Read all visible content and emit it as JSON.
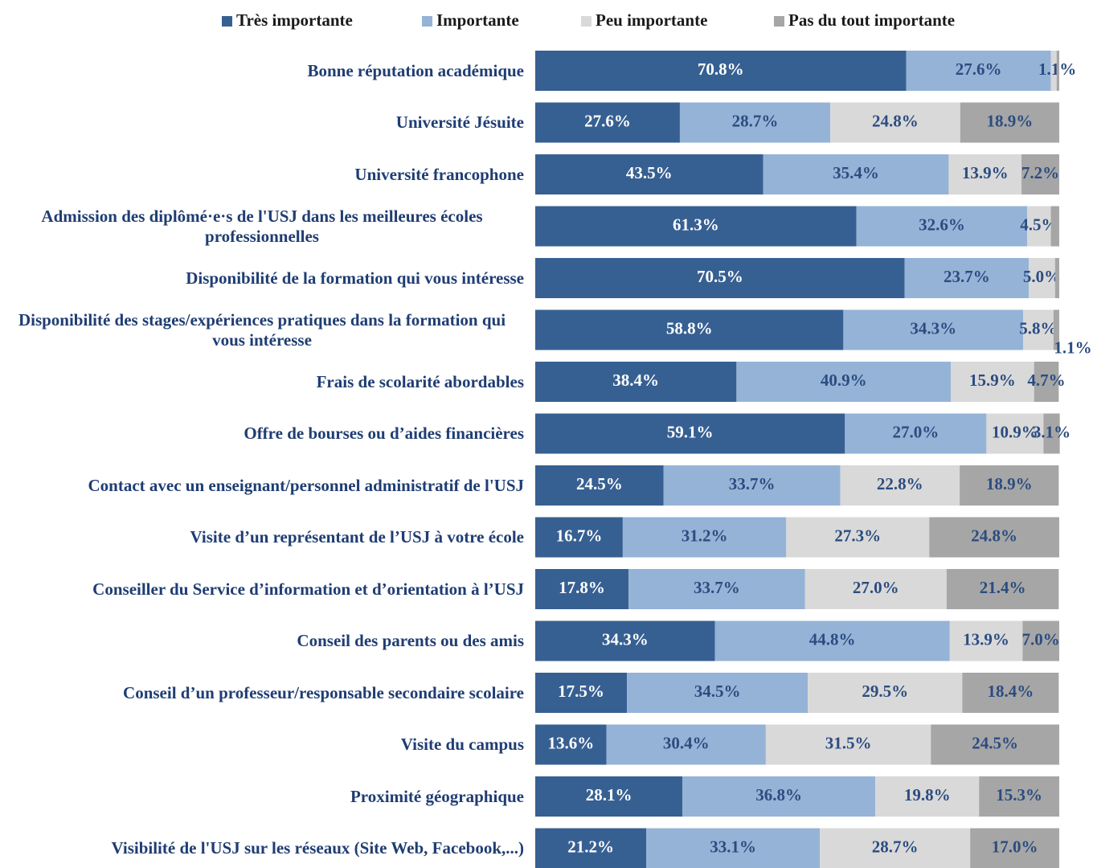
{
  "chart_data": {
    "type": "stacked-barh",
    "categories": [
      "Bonne réputation académique",
      "Université Jésuite",
      "Université francophone",
      "Admission des diplômé·e·s de l'USJ dans les meilleures écoles professionnelles",
      "Disponibilité de la formation qui vous intéresse",
      "Disponibilité des stages/expériences pratiques dans la formation qui vous intéresse",
      "Frais de scolarité abordables",
      "Offre de bourses ou d’aides financières",
      "Contact avec un enseignant/personnel administratif de l'USJ",
      "Visite d’un représentant de l’USJ à votre école",
      "Conseiller du Service d’information et d’orientation à l’USJ",
      "Conseil des parents ou des amis",
      "Conseil d’un professeur/responsable secondaire scolaire",
      "Visite du campus",
      "Proximité géographique",
      "Visibilité de l'USJ sur les réseaux (Site Web, Facebook,...)"
    ],
    "series": [
      {
        "name": "Très importante",
        "color": "#376092",
        "values": [
          70.8,
          27.6,
          43.5,
          61.3,
          70.5,
          58.8,
          38.4,
          59.1,
          24.5,
          16.7,
          17.8,
          34.3,
          17.5,
          13.6,
          28.1,
          21.2
        ],
        "value_labels": [
          "70.8%",
          "27.6%",
          "43.5%",
          "61.3%",
          "70.5%",
          "58.8%",
          "38.4%",
          "59.1%",
          "24.5%",
          "16.7%",
          "17.8%",
          "34.3%",
          "17.5%",
          "13.6%",
          "28.1%",
          "21.2%"
        ]
      },
      {
        "name": "Importante",
        "color": "#95b3d7",
        "values": [
          27.6,
          28.7,
          35.4,
          32.6,
          23.7,
          34.3,
          40.9,
          27.0,
          33.7,
          31.2,
          33.7,
          44.8,
          34.5,
          30.4,
          36.8,
          33.1
        ],
        "value_labels": [
          "27.6%",
          "28.7%",
          "35.4%",
          "32.6%",
          "23.7%",
          "34.3%",
          "40.9%",
          "27.0%",
          "33.7%",
          "31.2%",
          "33.7%",
          "44.8%",
          "34.5%",
          "30.4%",
          "36.8%",
          "33.1%"
        ]
      },
      {
        "name": "Peu importante",
        "color": "#d9d9d9",
        "values": [
          1.1,
          24.8,
          13.9,
          4.5,
          5.0,
          5.8,
          15.9,
          10.9,
          22.8,
          27.3,
          27.0,
          13.9,
          29.5,
          31.5,
          19.8,
          28.7
        ],
        "value_labels": [
          "1.1%",
          "24.8%",
          "13.9%",
          "4.5%",
          "5.0%",
          "5.8%",
          "15.9%",
          "10.9%",
          "22.8%",
          "27.3%",
          "27.0%",
          "13.9%",
          "29.5%",
          "31.5%",
          "19.8%",
          "28.7%"
        ]
      },
      {
        "name": "Pas du tout importante",
        "color": "#a6a6a6",
        "values": [
          0.5,
          18.9,
          7.2,
          1.6,
          0.8,
          1.1,
          4.7,
          3.1,
          18.9,
          24.8,
          21.4,
          7.0,
          18.4,
          24.5,
          15.3,
          17.0
        ],
        "value_labels": [
          null,
          "18.9%",
          "7.2%",
          null,
          null,
          "1.1%",
          "4.7%",
          "3.1%",
          "18.9%",
          "24.8%",
          "21.4%",
          "7.0%",
          "18.4%",
          "24.5%",
          "15.3%",
          "17.0%"
        ]
      }
    ],
    "xlim": [
      0,
      100
    ],
    "legend": "top"
  }
}
